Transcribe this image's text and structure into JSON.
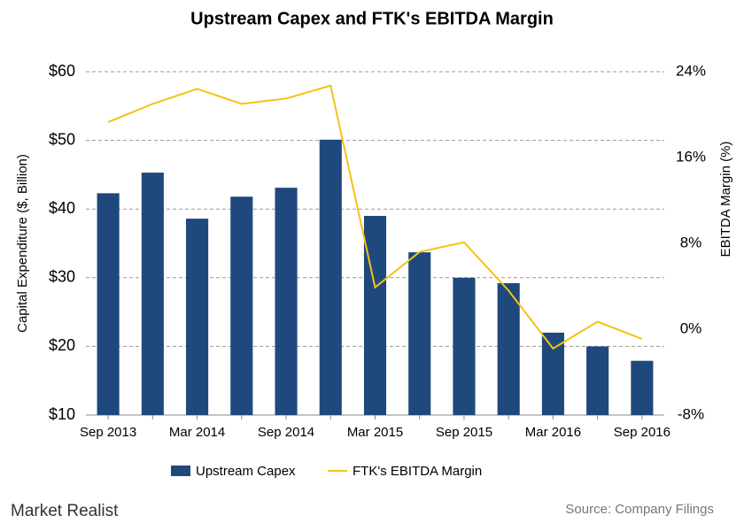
{
  "chart_data": {
    "type": "bar-line",
    "title": "Upstream  Capex and FTK's EBITDA Margin",
    "categories": [
      "Sep 2013",
      null,
      "Mar 2014",
      null,
      "Sep 2014",
      null,
      "Mar 2015",
      null,
      "Sep 2015",
      null,
      "Mar 2016",
      null,
      "Sep 2016"
    ],
    "series": [
      {
        "name": "Upstream Capex",
        "type": "bar",
        "color": "#1f497d",
        "values": [
          42.3,
          45.3,
          38.6,
          41.8,
          43.1,
          50.1,
          39.0,
          33.7,
          30.0,
          29.2,
          22.0,
          20.0,
          17.9
        ]
      },
      {
        "name": "FTK's EBITDA Margin",
        "type": "line",
        "axis": "y2",
        "color": "#f2c314",
        "values": [
          19.3,
          21.0,
          22.4,
          21.0,
          21.5,
          22.7,
          3.9,
          7.2,
          8.1,
          3.6,
          -1.8,
          0.7,
          -0.9
        ]
      }
    ],
    "ylabel": "Capital Expenditure ($, Billion)",
    "y2label": "EBITDA Margin (%)",
    "ylim": [
      10,
      60
    ],
    "yticks": [
      {
        "value": 10,
        "label": "$10"
      },
      {
        "value": 20,
        "label": "$20"
      },
      {
        "value": 30,
        "label": "$30"
      },
      {
        "value": 40,
        "label": "$40"
      },
      {
        "value": 50,
        "label": "$50"
      },
      {
        "value": 60,
        "label": "$60"
      }
    ],
    "y2lim": [
      -8,
      24
    ],
    "y2ticks": [
      {
        "value": -8,
        "label": "-8%"
      },
      {
        "value": 0,
        "label": "0%"
      },
      {
        "value": 8,
        "label": "8%"
      },
      {
        "value": 16,
        "label": "16%"
      },
      {
        "value": 24,
        "label": "24%"
      }
    ],
    "grid": true,
    "legend": "bottom",
    "brand": "Market Realist",
    "source": "Source: Company Filings"
  }
}
